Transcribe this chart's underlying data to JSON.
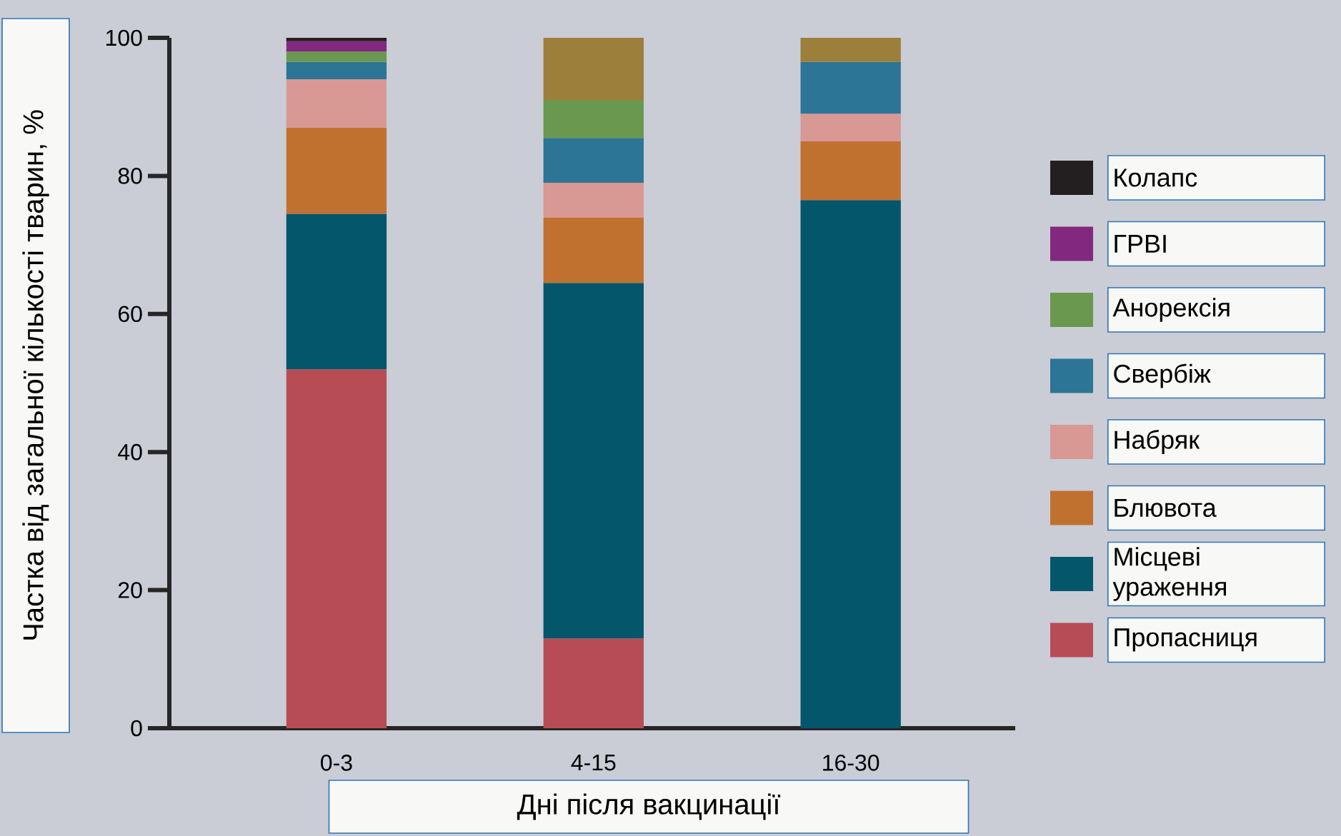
{
  "chart_data": {
    "type": "bar",
    "stacked": true,
    "xlabel": "Дні після вакцинації",
    "ylabel": "Частка від загальної кількості тварин, %",
    "categories": [
      "0-3",
      "4-15",
      "16-30"
    ],
    "ylim": [
      0,
      100
    ],
    "yticks": [
      0,
      20,
      40,
      60,
      80,
      100
    ],
    "grid": false,
    "legend": "right",
    "series": [
      {
        "name": "Пропасниця",
        "color": "#b84c55",
        "values": [
          52,
          13,
          null
        ]
      },
      {
        "name": "Місцеві ураження",
        "color": "#04566b",
        "values": [
          22.5,
          51.5,
          76.5
        ]
      },
      {
        "name": "Блювота",
        "color": "#c1712f",
        "values": [
          12.5,
          9.5,
          8.5
        ]
      },
      {
        "name": "Набряк",
        "color": "#d89894",
        "values": [
          7,
          5,
          4
        ]
      },
      {
        "name": "Свербіж",
        "color": "#2c7596",
        "values": [
          2.5,
          6.5,
          7.5
        ]
      },
      {
        "name": "Анорексія",
        "color": "#6a984e",
        "values": [
          1.5,
          5.5,
          null
        ]
      },
      {
        "name": "ГРВІ",
        "color": "#83287f",
        "values": [
          1.5,
          null,
          null
        ]
      },
      {
        "name": "Колапс",
        "color": "#231f20",
        "values": [
          0.5,
          null,
          null
        ]
      },
      {
        "color": "#9c7f3a",
        "values": [
          null,
          9,
          3.5
        ]
      }
    ]
  }
}
